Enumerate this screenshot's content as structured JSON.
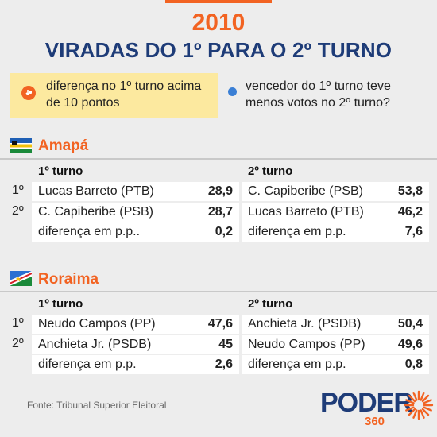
{
  "header": {
    "year": "2010",
    "title": "VIRADAS DO 1º PARA O 2º TURNO"
  },
  "legend": {
    "item1": "diferença no 1º turno acima de 10 pontos",
    "item2": "vencedor do 1º turno teve menos votos no 2º turno?"
  },
  "states": [
    {
      "name": "Amapá",
      "turno1_label": "1º turno",
      "turno2_label": "2º turno",
      "rank1": "1º",
      "rank2": "2º",
      "turno1": [
        {
          "name": "Lucas Barreto (PTB)",
          "value": "28,9"
        },
        {
          "name": "C. Capiberibe (PSB)",
          "value": "28,7"
        },
        {
          "name": "diferença em p.p..",
          "value": "0,2"
        }
      ],
      "turno2": [
        {
          "name": "C. Capiberibe (PSB)",
          "value": "53,8"
        },
        {
          "name": "Lucas Barreto (PTB)",
          "value": "46,2"
        },
        {
          "name": "diferença em p.p.",
          "value": "7,6"
        }
      ]
    },
    {
      "name": "Roraima",
      "turno1_label": "1º turno",
      "turno2_label": "2º turno",
      "rank1": "1º",
      "rank2": "2º",
      "turno1": [
        {
          "name": "Neudo Campos (PP)",
          "value": "47,6"
        },
        {
          "name": "Anchieta Jr. (PSDB)",
          "value": "45"
        },
        {
          "name": "diferença em p.p.",
          "value": "2,6"
        }
      ],
      "turno2": [
        {
          "name": "Anchieta Jr. (PSDB)",
          "value": "50,4"
        },
        {
          "name": "Neudo Campos (PP)",
          "value": "49,6"
        },
        {
          "name": "diferença em p.p.",
          "value": "0,8"
        }
      ]
    }
  ],
  "footer": {
    "source": "Fonte: Tribunal Superior Eleitoral",
    "logo_word": "PODER",
    "logo_num": "360"
  },
  "colors": {
    "accent": "#f26322",
    "title": "#1e3c78",
    "legend_bg": "#fce99f",
    "dot": "#3a7fd5"
  }
}
